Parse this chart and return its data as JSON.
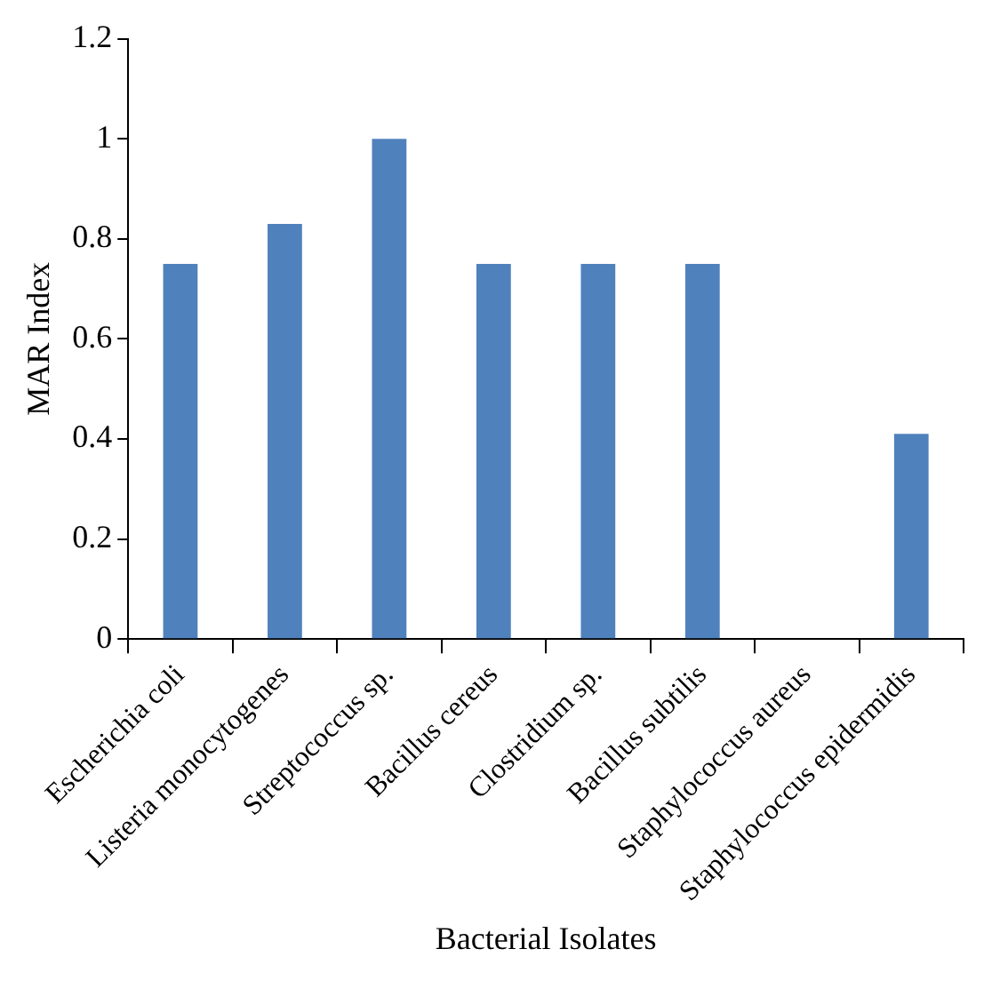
{
  "chart_data": {
    "type": "bar",
    "xlabel": "Bacterial Isolates",
    "ylabel": "MAR Index",
    "categories": [
      "Escherichia coli",
      "Listeria monocytogenes",
      "Streptococcus sp.",
      "Bacillus cereus",
      "Clostridium sp.",
      "Bacillus subtilis",
      "Staphylococcus aureus",
      "Staphylococcus epidermidis"
    ],
    "values": [
      0.75,
      0.83,
      1,
      0.75,
      0.75,
      0.75,
      0,
      0.41
    ],
    "color": "#4f81bd",
    "ylim": [
      0,
      1.2
    ],
    "yticks": [
      0,
      0.2,
      0.4,
      0.6,
      0.8,
      1,
      1.2
    ],
    "grid": false,
    "legend": false
  }
}
